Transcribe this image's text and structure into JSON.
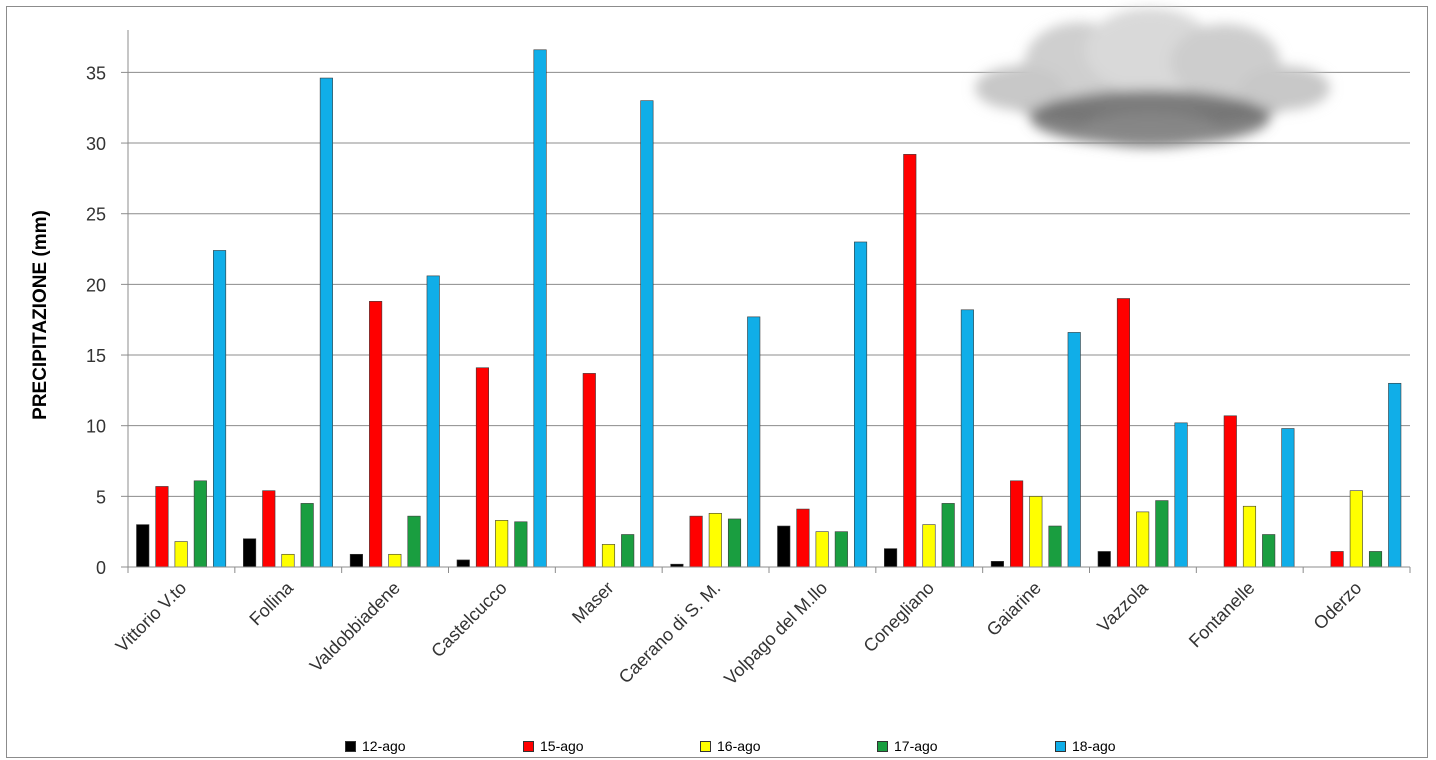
{
  "chart_data": {
    "type": "bar",
    "title": "",
    "xlabel": "",
    "ylabel": "PRECIPITAZIONE (mm)",
    "ylim": [
      0,
      38
    ],
    "yticks": [
      0,
      5,
      10,
      15,
      20,
      25,
      30,
      35
    ],
    "grid": true,
    "legend_position": "bottom",
    "categories": [
      "Vittorio V.to",
      "Follina",
      "Valdobbiadene",
      "Castelcucco",
      "Maser",
      "Caerano di S. M.",
      "Volpago del M.llo",
      "Conegliano",
      "Gaiarine",
      "Vazzola",
      "Fontanelle",
      "Oderzo"
    ],
    "series": [
      {
        "name": "12-ago",
        "color": "#000000",
        "values": [
          3.0,
          2.0,
          0.9,
          0.5,
          0,
          0.2,
          2.9,
          1.3,
          0.4,
          1.1,
          0,
          0
        ]
      },
      {
        "name": "15-ago",
        "color": "#ff0000",
        "values": [
          5.7,
          5.4,
          18.8,
          14.1,
          13.7,
          3.6,
          4.1,
          29.2,
          6.1,
          19.0,
          10.7,
          1.1
        ]
      },
      {
        "name": "16-ago",
        "color": "#ffff00",
        "values": [
          1.8,
          0.9,
          0.9,
          3.3,
          1.6,
          3.8,
          2.5,
          3.0,
          5.0,
          3.9,
          4.3,
          5.4
        ]
      },
      {
        "name": "17-ago",
        "color": "#1a9e40",
        "values": [
          6.1,
          4.5,
          3.6,
          3.2,
          2.3,
          3.4,
          2.5,
          4.5,
          2.9,
          4.7,
          2.3,
          1.1
        ]
      },
      {
        "name": "18-ago",
        "color": "#10aee8",
        "values": [
          22.4,
          34.6,
          20.6,
          36.6,
          33.0,
          17.7,
          23.0,
          18.2,
          16.6,
          10.2,
          9.8,
          13.0
        ]
      }
    ]
  },
  "decoration": {
    "icon": "cloud-icon"
  }
}
